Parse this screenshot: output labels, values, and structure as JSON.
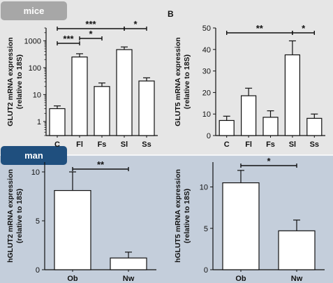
{
  "tabs": {
    "mice": {
      "label": "mice",
      "bg": "#a7a7a7"
    },
    "man": {
      "label": "man",
      "bg": "#1f4f7e"
    }
  },
  "colors": {
    "top_band": "#e6e6e6",
    "bottom_band": "#c4cedb",
    "bar_fill": "#ffffff",
    "stroke": "#111111"
  },
  "chart_data": [
    {
      "type": "bar",
      "scale": "log",
      "ylim": [
        0.3,
        3000
      ],
      "yticks": [
        1,
        10,
        100,
        1000
      ],
      "ytick_labels": [
        "1",
        "10",
        "100",
        "1000"
      ],
      "ylabel": "GLUT2 mRNA expression",
      "ylabel2": "(relative to 18S)",
      "categories": [
        "C",
        "Fl",
        "Fs",
        "Sl",
        "Ss"
      ],
      "values": [
        3,
        250,
        20,
        470,
        32
      ],
      "err_upper": [
        3.8,
        330,
        27,
        590,
        42
      ],
      "significance": [
        {
          "from": 0,
          "to": 3,
          "label": "***",
          "level": 3
        },
        {
          "from": 0,
          "to": 1,
          "label": "***",
          "level": 1
        },
        {
          "from": 1,
          "to": 2,
          "label": "*",
          "level": 2
        },
        {
          "from": 3,
          "to": 4,
          "label": "*",
          "level": 3
        }
      ]
    },
    {
      "type": "bar",
      "panel_letter": "B",
      "ylim": [
        0,
        50
      ],
      "yticks": [
        0,
        10,
        20,
        30,
        40,
        50
      ],
      "ytick_labels": [
        "0",
        "10",
        "20",
        "30",
        "40",
        "50"
      ],
      "ylabel": "GLUT5 mRNA expression",
      "ylabel2": "(relative to 18S)",
      "categories": [
        "C",
        "Fl",
        "Fs",
        "Sl",
        "Ss"
      ],
      "values": [
        7,
        18.5,
        8.5,
        37.5,
        8
      ],
      "err_upper": [
        9,
        22,
        11.5,
        44,
        10
      ],
      "significance": [
        {
          "from": 0,
          "to": 3,
          "label": "**",
          "level": 1
        },
        {
          "from": 3,
          "to": 4,
          "label": "*",
          "level": 1
        }
      ]
    },
    {
      "type": "bar",
      "ylim": [
        0,
        11
      ],
      "yticks": [
        0,
        5,
        10
      ],
      "ytick_labels": [
        "0",
        "5",
        "10"
      ],
      "ylabel": "hGLUT2 mRNA expression",
      "ylabel2": "(relative to 18S)",
      "categories": [
        "Ob",
        "Nw"
      ],
      "values": [
        8.1,
        1.2
      ],
      "err_upper": [
        10,
        1.8
      ],
      "significance": [
        {
          "from": 0,
          "to": 1,
          "label": "**",
          "level": 1
        }
      ]
    },
    {
      "type": "bar",
      "ylim": [
        0,
        13
      ],
      "yticks": [
        0,
        5,
        10
      ],
      "ytick_labels": [
        "0",
        "5",
        "10"
      ],
      "ylabel": "hGLUT5 mRNA expression",
      "ylabel2": "(relative to 18S)",
      "categories": [
        "Ob",
        "Nw"
      ],
      "values": [
        10.5,
        4.7
      ],
      "err_upper": [
        12,
        6
      ],
      "significance": [
        {
          "from": 0,
          "to": 1,
          "label": "*",
          "level": 1
        }
      ]
    }
  ]
}
